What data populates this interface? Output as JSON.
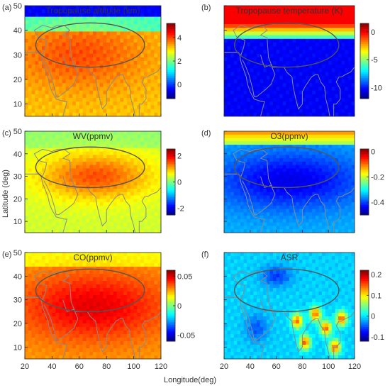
{
  "figure": {
    "ylabel": "Latitude (deg)",
    "xlabel": "Longitude(deg)"
  },
  "chart_data": [
    {
      "type": "heatmap",
      "panel": "(a)",
      "title": "Tropopause altitude (km)",
      "x_ticks": [
        20,
        40,
        60,
        80,
        100,
        120
      ],
      "y_ticks": [
        10,
        20,
        30,
        40,
        50
      ],
      "xlim": [
        20,
        120
      ],
      "ylim": [
        5,
        50
      ],
      "x_tick_labels_shown": false,
      "y_tick_labels_shown": true,
      "colorbar": {
        "ticks": [
          0,
          2,
          4
        ],
        "range": [
          -1.2,
          5.2
        ]
      },
      "colormap": "jet",
      "contour": "Asian monsoon anticyclone region, ~25-43N, 28-108E",
      "coastlines": true,
      "field_description": "high (~4 km) over 15-45N, negative north of ~45N"
    },
    {
      "type": "heatmap",
      "panel": "(b)",
      "title": "Tropopause temperature (K)",
      "x_ticks": [
        20,
        40,
        60,
        80,
        100,
        120
      ],
      "y_ticks": [
        10,
        20,
        30,
        40,
        50
      ],
      "xlim": [
        20,
        120
      ],
      "ylim": [
        5,
        50
      ],
      "x_tick_labels_shown": false,
      "y_tick_labels_shown": false,
      "colorbar": {
        "ticks": [
          0,
          -5,
          -10
        ],
        "range": [
          -12,
          1.5
        ]
      },
      "colormap": "jet",
      "contour": "Asian monsoon anticyclone region, ~25-43N, 28-108E",
      "coastlines": true,
      "field_description": "positive north of ~40N, strongly negative (~-10) south of ~35N"
    },
    {
      "type": "heatmap",
      "panel": "(c)",
      "title": "WV(ppmv)",
      "x_ticks": [
        20,
        40,
        60,
        80,
        100,
        120
      ],
      "y_ticks": [
        10,
        20,
        30,
        40,
        50
      ],
      "xlim": [
        20,
        120
      ],
      "ylim": [
        5,
        50
      ],
      "x_tick_labels_shown": false,
      "y_tick_labels_shown": true,
      "colorbar": {
        "ticks": [
          2,
          0,
          -2
        ],
        "range": [
          -2.5,
          2.5
        ]
      },
      "colormap": "jet",
      "contour": "Asian monsoon anticyclone region, ~25-43N, 28-108E",
      "coastlines": true,
      "field_description": "maximum (~1.5) inside anticyclone near 30N, ~0.3-0.5 elsewhere"
    },
    {
      "type": "heatmap",
      "panel": "(d)",
      "title": "O3(ppmv)",
      "x_ticks": [
        20,
        40,
        60,
        80,
        100,
        120
      ],
      "y_ticks": [
        10,
        20,
        30,
        40,
        50
      ],
      "xlim": [
        20,
        120
      ],
      "ylim": [
        5,
        50
      ],
      "x_tick_labels_shown": false,
      "y_tick_labels_shown": false,
      "colorbar": {
        "ticks": [
          0,
          -0.2,
          -0.4
        ],
        "range": [
          -0.5,
          0.02
        ]
      },
      "colormap": "jet",
      "contour": "Asian monsoon anticyclone region, ~25-43N, 28-108E",
      "coastlines": true,
      "field_description": "minimum (~-0.4) inside anticyclone, near 0 north of 45N"
    },
    {
      "type": "heatmap",
      "panel": "(e)",
      "title": "CO(ppmv)",
      "x_ticks": [
        20,
        40,
        60,
        80,
        100,
        120
      ],
      "y_ticks": [
        10,
        20,
        30,
        40,
        50
      ],
      "xlim": [
        20,
        120
      ],
      "ylim": [
        5,
        50
      ],
      "x_tick_labels_shown": true,
      "y_tick_labels_shown": true,
      "colorbar": {
        "ticks": [
          0.05,
          0,
          -0.05
        ],
        "range": [
          -0.06,
          0.06
        ]
      },
      "colormap": "jet",
      "contour": "Asian monsoon anticyclone region, ~25-43N, 28-108E",
      "coastlines": true,
      "field_description": "maximum (~0.05) inside anticyclone, ~0.02 toward the edges"
    },
    {
      "type": "heatmap",
      "panel": "(f)",
      "title": "ASR",
      "x_ticks": [
        20,
        40,
        60,
        80,
        100,
        120
      ],
      "y_ticks": [
        10,
        20,
        30,
        40,
        50
      ],
      "xlim": [
        20,
        120
      ],
      "ylim": [
        5,
        50
      ],
      "x_tick_labels_shown": true,
      "y_tick_labels_shown": false,
      "colorbar": {
        "ticks": [
          0.2,
          0.1,
          0,
          -0.1
        ],
        "range": [
          -0.12,
          0.22
        ]
      },
      "colormap": "jet",
      "contour": "Asian monsoon anticyclone region, ~25-43N, 28-108E",
      "coastlines": true,
      "field_description": "mostly ~0 with patchy positive cells (~0.15) near 75-110E, 10-25N"
    }
  ]
}
